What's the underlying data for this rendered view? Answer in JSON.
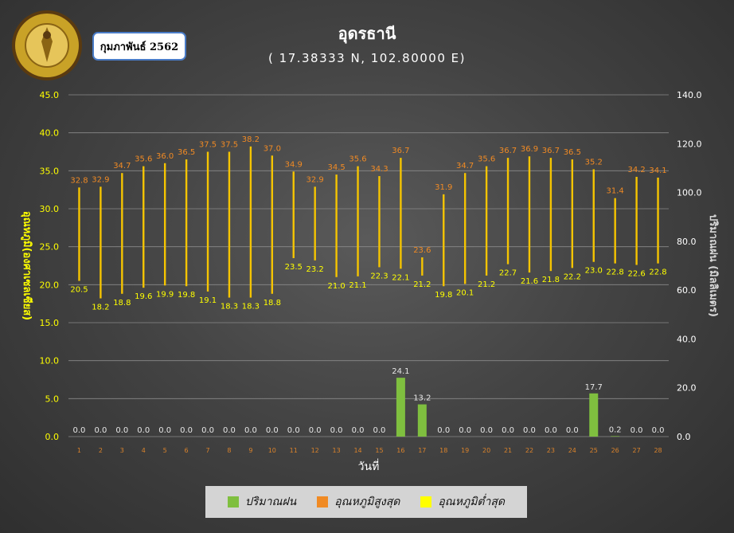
{
  "header": {
    "title": "อุดรธานี",
    "subtitle": "( 17.38333 N, 102.80000 E)",
    "month": "กุมภาพันธ์ 2562"
  },
  "colors": {
    "rain": "#7fbf3f",
    "max": "#f08a24",
    "min": "#ffff00",
    "axis_left": "#ffff00",
    "axis_right": "#ffffff"
  },
  "legend": {
    "rain": "ปริมาณฝน",
    "max": "อุณหภูมิสูงสุด",
    "min": "อุณหภูมิต่ำสุด"
  },
  "chart_data": {
    "type": "bar",
    "xlabel": "วันที่",
    "ylabel_left": "อุณหภูมิ(องศาเซลเซียส)",
    "ylabel_right": "ปริมาณฝน (มิลลิเมตร)",
    "ylim_left": [
      0,
      45
    ],
    "ylim_right": [
      0,
      140
    ],
    "left_ticks": [
      "0.0",
      "5.0",
      "10.0",
      "15.0",
      "20.0",
      "25.0",
      "30.0",
      "35.0",
      "40.0",
      "45.0"
    ],
    "right_ticks": [
      "0.0",
      "20.0",
      "40.0",
      "60.0",
      "80.0",
      "100.0",
      "120.0",
      "140.0"
    ],
    "days": [
      "1",
      "2",
      "3",
      "4",
      "5",
      "6",
      "7",
      "8",
      "9",
      "10",
      "11",
      "12",
      "13",
      "14",
      "15",
      "16",
      "17",
      "18",
      "19",
      "20",
      "21",
      "22",
      "23",
      "24",
      "25",
      "26",
      "27",
      "28"
    ],
    "series": [
      {
        "name": "ปริมาณฝน",
        "values": [
          0.0,
          0.0,
          0.0,
          0.0,
          0.0,
          0.0,
          0.0,
          0.0,
          0.0,
          0.0,
          0.0,
          0.0,
          0.0,
          0.0,
          0.0,
          24.1,
          13.2,
          0.0,
          0.0,
          0.0,
          0.0,
          0.0,
          0.0,
          0.0,
          17.7,
          0.2,
          0.0,
          0.0
        ],
        "labels": [
          "0.0",
          "0.0",
          "0.0",
          "0.0",
          "0.0",
          "0.0",
          "0.0",
          "0.0",
          "0.0",
          "0.0",
          "0.0",
          "0.0",
          "0.0",
          "0.0",
          "0.0",
          "24.1",
          "13.2",
          "0.0",
          "0.0",
          "0.0",
          "0.0",
          "0.0",
          "0.0",
          "0.0",
          "17.7",
          "0.2",
          "0.0",
          "0.0"
        ]
      },
      {
        "name": "อุณหภูมิสูงสุด",
        "values": [
          32.8,
          32.9,
          34.7,
          35.6,
          36.0,
          36.5,
          37.5,
          37.5,
          38.2,
          37.0,
          34.9,
          32.9,
          34.5,
          35.6,
          34.3,
          36.7,
          23.6,
          31.9,
          34.7,
          35.6,
          36.7,
          36.9,
          36.7,
          36.5,
          35.2,
          31.4,
          34.2,
          34.1
        ],
        "labels": [
          "32.8",
          "32.9",
          "34.7",
          "35.6",
          "36.0",
          "36.5",
          "37.5",
          "37.5",
          "38.2",
          "37.0",
          "34.9",
          "32.9",
          "34.5",
          "35.6",
          "34.3",
          "36.7",
          "23.6",
          "31.9",
          "34.7",
          "35.6",
          "36.7",
          "36.9",
          "36.7",
          "36.5",
          "35.2",
          "31.4",
          "34.2",
          "34.1"
        ]
      },
      {
        "name": "อุณหภูมิต่ำสุด",
        "values": [
          20.5,
          18.2,
          18.8,
          19.6,
          19.9,
          19.8,
          19.1,
          18.3,
          18.3,
          18.8,
          23.5,
          23.2,
          21.0,
          21.1,
          22.3,
          22.1,
          21.2,
          19.8,
          20.1,
          21.2,
          22.7,
          21.6,
          21.8,
          22.2,
          23.0,
          22.8,
          22.6,
          22.8
        ],
        "labels": [
          "20.5",
          "18.2",
          "18.8",
          "19.6",
          "19.9",
          "19.8",
          "19.1",
          "18.3",
          "18.3",
          "18.8",
          "23.5",
          "23.2",
          "21.0",
          "21.1",
          "22.3",
          "22.1",
          "21.2",
          "19.8",
          "20.1",
          "21.2",
          "22.7",
          "21.6",
          "21.8",
          "22.2",
          "23.0",
          "22.8",
          "22.6",
          "22.8"
        ]
      }
    ]
  }
}
